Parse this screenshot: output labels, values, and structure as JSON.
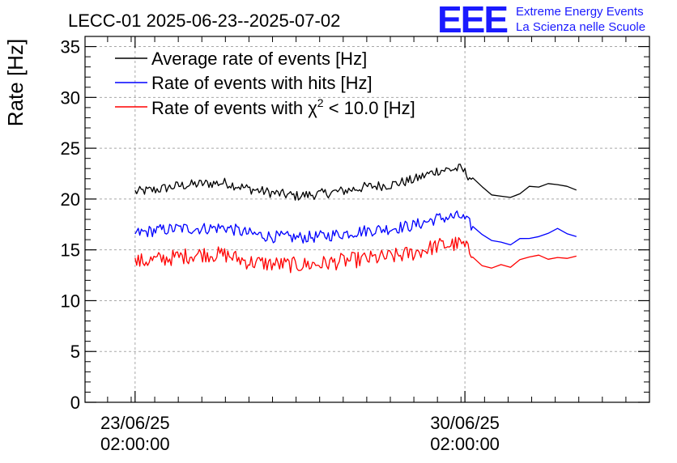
{
  "header": {
    "title": "LECC-01 2025-06-23--2025-07-02",
    "logo_letters": "EEE",
    "logo_line1": "Extreme Energy Events",
    "logo_line2": "La Scienza nelle Scuole"
  },
  "chart_data": {
    "type": "line",
    "title": "LECC-01 2025-06-23--2025-07-02",
    "ylabel": "Rate [Hz]",
    "xlabel": "",
    "ylim": [
      0,
      36
    ],
    "yticks": [
      0,
      5,
      10,
      15,
      20,
      25,
      30,
      35
    ],
    "xlim": [
      "2025-06-22T00:30",
      "2025-07-04T00:00"
    ],
    "x_ticks": [
      {
        "x": "2025-06-23T02:00",
        "label_date": "23/06/25",
        "label_time": "02:00:00"
      },
      {
        "x": "2025-06-30T02:00",
        "label_date": "30/06/25",
        "label_time": "02:00:00"
      }
    ],
    "grid": true,
    "legend_position": "top-left",
    "legend": [
      {
        "text": "Average rate of events [Hz]",
        "color": "#000000"
      },
      {
        "text": "Rate of events with hits [Hz]",
        "color": "#0000ff"
      },
      {
        "text_before": "Rate of events with ",
        "chi": "χ",
        "sup": "2",
        "text_after": " < 10.0 [Hz]",
        "color": "#ff0000"
      }
    ],
    "x": [
      "2025-06-23T02:00",
      "2025-06-23T12:00",
      "2025-06-24T00:00",
      "2025-06-24T12:00",
      "2025-06-25T00:00",
      "2025-06-25T12:00",
      "2025-06-26T00:00",
      "2025-06-26T12:00",
      "2025-06-27T00:00",
      "2025-06-27T12:00",
      "2025-06-28T00:00",
      "2025-06-28T12:00",
      "2025-06-29T00:00",
      "2025-06-29T12:00",
      "2025-06-30T00:00",
      "2025-06-30T12:00",
      "2025-07-01T00:00",
      "2025-07-01T12:00",
      "2025-07-02T00:00",
      "2025-07-02T12:00"
    ],
    "series": [
      {
        "name": "Average rate of events [Hz]",
        "color": "#000000",
        "values": [
          20.7,
          20.9,
          21.3,
          21.5,
          21.6,
          21.0,
          20.6,
          20.3,
          20.5,
          20.8,
          21.2,
          21.4,
          21.9,
          22.8,
          23.0,
          20.8,
          20.1,
          21.2,
          21.4,
          20.7
        ],
        "noise": 0.5
      },
      {
        "name": "Rate of events with hits [Hz]",
        "color": "#0000ff",
        "values": [
          16.6,
          16.9,
          17.1,
          17.1,
          17.2,
          16.6,
          16.3,
          16.2,
          16.3,
          16.6,
          16.9,
          17.1,
          17.4,
          18.1,
          18.3,
          16.2,
          15.6,
          16.3,
          17.0,
          16.5
        ],
        "noise": 0.6
      },
      {
        "name": "Rate of events with χ2 < 10.0 [Hz]",
        "color": "#ff0000",
        "values": [
          13.8,
          14.0,
          14.3,
          14.6,
          14.5,
          13.8,
          13.6,
          13.5,
          13.6,
          13.9,
          14.1,
          14.3,
          14.7,
          15.4,
          15.6,
          13.5,
          13.3,
          14.5,
          14.1,
          14.1
        ],
        "noise": 0.8
      }
    ]
  }
}
